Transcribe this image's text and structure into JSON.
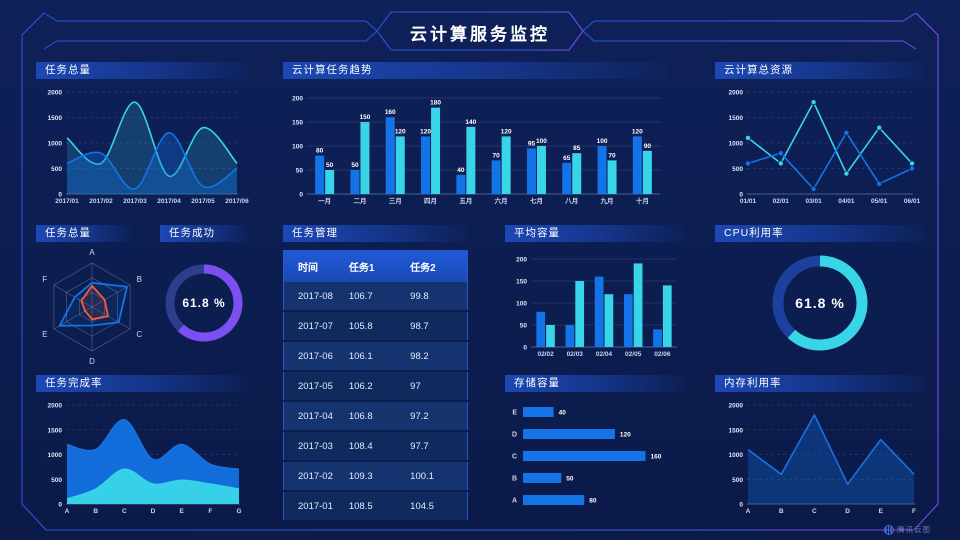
{
  "header": {
    "title": "云计算服务监控",
    "watermark": "腾讯云图"
  },
  "panels": {
    "task_total_top": {
      "title": "任务总量"
    },
    "task_trend": {
      "title": "云计算任务趋势"
    },
    "total_resources": {
      "title": "云计算总资源"
    },
    "task_total_radar": {
      "title": "任务总量"
    },
    "task_success": {
      "title": "任务成功"
    },
    "task_manage": {
      "title": "任务管理"
    },
    "avg_capacity": {
      "title": "平均容量"
    },
    "cpu_usage": {
      "title": "CPU利用率"
    },
    "task_completion": {
      "title": "任务完成率"
    },
    "storage": {
      "title": "存储容量"
    },
    "memory": {
      "title": "内存利用率"
    }
  },
  "colors": {
    "blue": "#1473e6",
    "cyan": "#38d4e8",
    "purple": "#7c4ff0",
    "orange": "#ff5a2e",
    "grid": "#7e93c4",
    "axis_text": "#ccd7f2"
  },
  "chart_data": [
    {
      "id": "task_total_top",
      "type": "area",
      "smooth": true,
      "grid": "dashed",
      "x": [
        "2017/01",
        "2017/02",
        "2017/03",
        "2017/04",
        "2017/05",
        "2017/06"
      ],
      "ylim": [
        0,
        2000
      ],
      "yticks": [
        0,
        500,
        1000,
        1500,
        2000
      ],
      "series": [
        {
          "color": "cyan",
          "values": [
            1100,
            600,
            1800,
            350,
            1300,
            600
          ],
          "fill": 0.18
        },
        {
          "color": "blue",
          "values": [
            600,
            800,
            100,
            1200,
            150,
            500
          ],
          "fill": 0.32
        }
      ]
    },
    {
      "id": "task_trend",
      "type": "bar",
      "grid": "solid",
      "labels": true,
      "categories": [
        "一月",
        "二月",
        "三月",
        "四月",
        "五月",
        "六月",
        "七月",
        "八月",
        "九月",
        "十月"
      ],
      "ylim": [
        0,
        200
      ],
      "yticks": [
        0,
        50,
        100,
        150,
        200
      ],
      "series": [
        {
          "color": "blue",
          "values": [
            80,
            50,
            160,
            120,
            40,
            70,
            95,
            65,
            100,
            120
          ]
        },
        {
          "color": "cyan",
          "values": [
            50,
            150,
            120,
            180,
            140,
            120,
            100,
            85,
            70,
            90
          ]
        }
      ]
    },
    {
      "id": "total_resources",
      "type": "line",
      "markers": true,
      "grid": "dashed",
      "x": [
        "01/01",
        "02/01",
        "03/01",
        "04/01",
        "05/01",
        "06/01"
      ],
      "ylim": [
        0,
        2000
      ],
      "yticks": [
        0,
        500,
        1000,
        1500,
        2000
      ],
      "series": [
        {
          "color": "cyan",
          "values": [
            1100,
            600,
            1800,
            400,
            1300,
            600
          ]
        },
        {
          "color": "blue",
          "values": [
            600,
            800,
            100,
            1200,
            200,
            500
          ]
        }
      ]
    },
    {
      "id": "task_total_radar",
      "type": "radar",
      "axes": [
        "A",
        "B",
        "C",
        "D",
        "E",
        "F"
      ],
      "max": 1,
      "series": [
        {
          "color": "blue",
          "values": [
            0.55,
            0.92,
            0.7,
            0.42,
            0.85,
            0.45
          ]
        },
        {
          "color": "orange",
          "values": [
            0.48,
            0.33,
            0.42,
            0.28,
            0.18,
            0.28
          ]
        }
      ]
    },
    {
      "id": "task_success",
      "type": "donut",
      "value": 61.8,
      "label": "61.8 %",
      "color": "purple",
      "track": "#2c3e8c"
    },
    {
      "id": "task_manage",
      "type": "table",
      "headers": [
        "时间",
        "任务1",
        "任务2"
      ],
      "rows": [
        [
          "2017-08",
          "106.7",
          "99.8"
        ],
        [
          "2017-07",
          "105.8",
          "98.7"
        ],
        [
          "2017-06",
          "106.1",
          "98.2"
        ],
        [
          "2017-05",
          "106.2",
          "97"
        ],
        [
          "2017-04",
          "106.8",
          "97.2"
        ],
        [
          "2017-03",
          "108.4",
          "97.7"
        ],
        [
          "2017-02",
          "109.3",
          "100.1"
        ],
        [
          "2017-01",
          "108.5",
          "104.5"
        ]
      ]
    },
    {
      "id": "avg_capacity",
      "type": "bar",
      "grid": "solid",
      "labels": false,
      "categories": [
        "02/02",
        "02/03",
        "02/04",
        "02/05",
        "02/06"
      ],
      "ylim": [
        0,
        200
      ],
      "yticks": [
        0,
        50,
        100,
        150,
        200
      ],
      "series": [
        {
          "color": "blue",
          "values": [
            80,
            50,
            160,
            120,
            40
          ]
        },
        {
          "color": "cyan",
          "values": [
            50,
            150,
            120,
            190,
            140
          ]
        }
      ]
    },
    {
      "id": "cpu_usage",
      "type": "donut",
      "value": 61.8,
      "label": "61.8 %",
      "color": "cyan",
      "track": "#1d3f9e"
    },
    {
      "id": "task_completion",
      "type": "area",
      "smooth": true,
      "grid": "dashed",
      "x": [
        "A",
        "B",
        "C",
        "D",
        "E",
        "F",
        "G"
      ],
      "ylim": [
        0,
        2000
      ],
      "yticks": [
        0,
        500,
        1000,
        1500,
        2000
      ],
      "series": [
        {
          "color": "blue",
          "values": [
            1200,
            1100,
            1700,
            900,
            1200,
            800,
            700
          ],
          "fill": 0.92
        },
        {
          "color": "cyan",
          "values": [
            100,
            300,
            700,
            400,
            480,
            400,
            300
          ],
          "fill": 0.97
        }
      ]
    },
    {
      "id": "storage",
      "type": "hbar",
      "labels": true,
      "color": "blue",
      "xmax": 175,
      "categories": [
        "E",
        "D",
        "C",
        "B",
        "A"
      ],
      "values": [
        40,
        120,
        160,
        50,
        80
      ]
    },
    {
      "id": "memory",
      "type": "line",
      "markers": false,
      "grid": "dashed",
      "x": [
        "A",
        "B",
        "C",
        "D",
        "E",
        "F"
      ],
      "ylim": [
        0,
        2000
      ],
      "yticks": [
        0,
        500,
        1000,
        1500,
        2000
      ],
      "series": [
        {
          "color": "blue",
          "values": [
            1100,
            600,
            1800,
            400,
            1300,
            600
          ],
          "fill": 0.3
        }
      ]
    }
  ]
}
